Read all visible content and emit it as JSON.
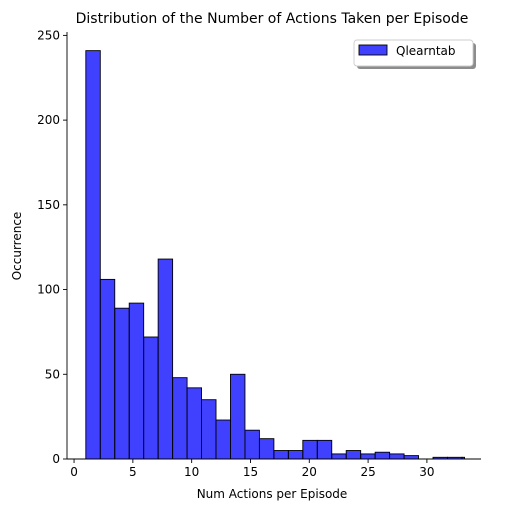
{
  "chart_data": {
    "type": "histogram",
    "title": "Distribution of the Number of Actions Taken per Episode",
    "xlabel": "Num Actions per Episode",
    "ylabel": "Occurrence",
    "xlim": [
      -0.6,
      34.6
    ],
    "ylim": [
      0,
      252
    ],
    "xticks": [
      0,
      5,
      10,
      15,
      20,
      25,
      30
    ],
    "yticks": [
      0,
      50,
      100,
      150,
      200,
      250
    ],
    "grid": false,
    "legend_position": "top-right",
    "series": [
      {
        "name": "Qlearntab",
        "color": "#0000ff",
        "bins": [
          {
            "start": 1.0,
            "end": 2.23,
            "count": 241
          },
          {
            "start": 2.23,
            "end": 3.46,
            "count": 106
          },
          {
            "start": 3.46,
            "end": 4.69,
            "count": 89
          },
          {
            "start": 4.69,
            "end": 5.92,
            "count": 92
          },
          {
            "start": 5.92,
            "end": 7.15,
            "count": 72
          },
          {
            "start": 7.15,
            "end": 8.38,
            "count": 118
          },
          {
            "start": 8.38,
            "end": 9.61,
            "count": 48
          },
          {
            "start": 9.61,
            "end": 10.84,
            "count": 42
          },
          {
            "start": 10.84,
            "end": 12.07,
            "count": 35
          },
          {
            "start": 12.07,
            "end": 13.3,
            "count": 23
          },
          {
            "start": 13.3,
            "end": 14.53,
            "count": 50
          },
          {
            "start": 14.53,
            "end": 15.76,
            "count": 17
          },
          {
            "start": 15.76,
            "end": 16.99,
            "count": 12
          },
          {
            "start": 16.99,
            "end": 18.22,
            "count": 5
          },
          {
            "start": 18.22,
            "end": 19.45,
            "count": 5
          },
          {
            "start": 19.45,
            "end": 20.68,
            "count": 11
          },
          {
            "start": 20.68,
            "end": 21.91,
            "count": 11
          },
          {
            "start": 21.91,
            "end": 23.14,
            "count": 3
          },
          {
            "start": 23.14,
            "end": 24.37,
            "count": 5
          },
          {
            "start": 24.37,
            "end": 25.6,
            "count": 3
          },
          {
            "start": 25.6,
            "end": 26.83,
            "count": 4
          },
          {
            "start": 26.83,
            "end": 28.06,
            "count": 3
          },
          {
            "start": 28.06,
            "end": 29.29,
            "count": 2
          },
          {
            "start": 29.29,
            "end": 30.52,
            "count": 0
          },
          {
            "start": 30.52,
            "end": 31.75,
            "count": 1
          },
          {
            "start": 31.75,
            "end": 32.98,
            "count": 1
          },
          {
            "start": 32.98,
            "end": 33.2,
            "count": 1
          }
        ]
      }
    ]
  }
}
